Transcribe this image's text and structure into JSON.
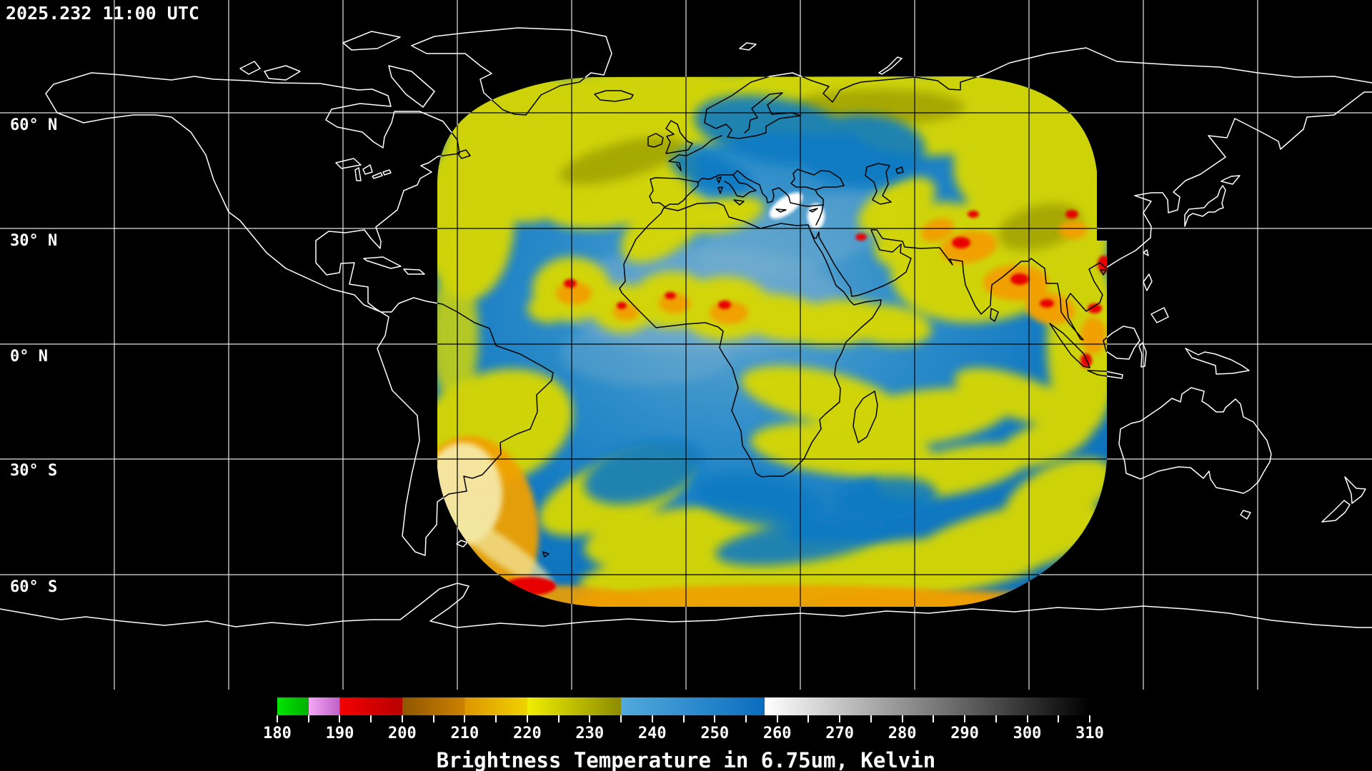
{
  "header": {
    "timestamp": "2025.232 11:00 UTC"
  },
  "map": {
    "latitude_labels": [
      "60° N",
      "30° N",
      "0° N",
      "30° S",
      "60° S"
    ],
    "grid": {
      "longitude_spacing_deg": 30,
      "latitude_spacing_deg": 30
    },
    "description": "Geostationary satellite water vapor brightness temperature swath over Africa/Europe/Indian Ocean on world coastline map"
  },
  "colorbar": {
    "min_kelvin": 180,
    "max_kelvin": 310,
    "major_tick_labels": [
      "180",
      "190",
      "200",
      "210",
      "220",
      "230",
      "240",
      "250",
      "260",
      "270",
      "280",
      "290",
      "300",
      "310"
    ],
    "minor_tick_step_kelvin": 5,
    "caption": "Brightness Temperature in 6.75um, Kelvin",
    "palette": [
      {
        "from": 180,
        "to": 185,
        "colors": [
          "#00e400",
          "#00b000"
        ],
        "name": "green"
      },
      {
        "from": 185,
        "to": 190,
        "colors": [
          "#f4a8f4",
          "#c060c8"
        ],
        "name": "pink"
      },
      {
        "from": 190,
        "to": 200,
        "colors": [
          "#f40000",
          "#b80000"
        ],
        "name": "red"
      },
      {
        "from": 200,
        "to": 210,
        "colors": [
          "#8f5600",
          "#cc8200"
        ],
        "name": "dark-orange"
      },
      {
        "from": 210,
        "to": 220,
        "colors": [
          "#dd9600",
          "#f0d200"
        ],
        "name": "amber"
      },
      {
        "from": 220,
        "to": 235,
        "colors": [
          "#f0ee00",
          "#8c8c00"
        ],
        "name": "yellow-olive"
      },
      {
        "from": 235,
        "to": 258,
        "colors": [
          "#52aadc",
          "#0a6cbe"
        ],
        "name": "blue"
      },
      {
        "from": 258,
        "to": 310,
        "colors": [
          "#ffffff",
          "#000000"
        ],
        "name": "grayscale"
      }
    ]
  },
  "colors": {
    "background": "#000000",
    "graticule": "#e4e4e4",
    "coastline_outside_swath": "#ffffff",
    "coastline_inside_swath": "#000000",
    "text": "#ffffff"
  }
}
